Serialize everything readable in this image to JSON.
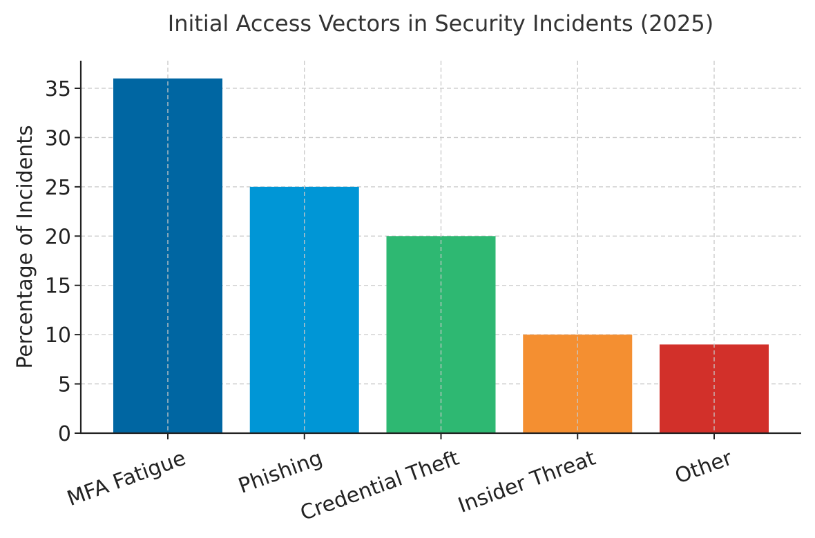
{
  "chart_data": {
    "type": "bar",
    "title": "Initial Access Vectors in Security Incidents (2025)",
    "xlabel": "",
    "ylabel": "Percentage of Incidents",
    "categories": [
      "MFA Fatigue",
      "Phishing",
      "Credential Theft",
      "Insider Threat",
      "Other"
    ],
    "values": [
      36,
      25,
      20,
      10,
      9
    ],
    "colors": [
      "#0066a2",
      "#0096d6",
      "#2eb872",
      "#f48f31",
      "#d2302a"
    ],
    "ylim": [
      0,
      37.8
    ],
    "yticks": [
      0,
      5,
      10,
      15,
      20,
      25,
      30,
      35
    ],
    "grid": true,
    "legend": "none"
  }
}
